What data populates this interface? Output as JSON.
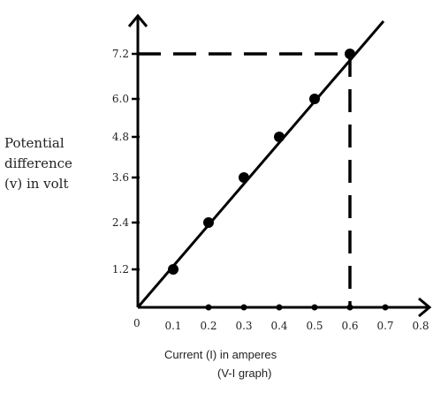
{
  "chart_data": {
    "type": "line",
    "ylabel_lines": [
      "Potential",
      "difference",
      "(v) in volt"
    ],
    "xlabel": "Current (I) in amperes",
    "caption": "(V-I graph)",
    "origin_label": "0",
    "x_ticks": [
      0.1,
      0.2,
      0.3,
      0.4,
      0.5,
      0.6,
      0.7,
      0.8
    ],
    "x_tick_labels": [
      "0.1",
      "0.2",
      "0.3",
      "0.4",
      "0.5",
      "0.6",
      "0.7",
      "0.8"
    ],
    "y_ticks": [
      1.2,
      2.4,
      3.6,
      4.8,
      6.0,
      7.2
    ],
    "y_tick_labels": [
      "1.2",
      "2.4",
      "3.6",
      "4.8",
      "6.0",
      "7.2"
    ],
    "xlim": [
      0,
      0.8
    ],
    "ylim": [
      0,
      7.2
    ],
    "series": [
      {
        "points": [
          {
            "x": 0.1,
            "y": 1.2
          },
          {
            "x": 0.2,
            "y": 2.4
          },
          {
            "x": 0.3,
            "y": 3.6
          },
          {
            "x": 0.4,
            "y": 4.8
          },
          {
            "x": 0.5,
            "y": 6.0
          },
          {
            "x": 0.6,
            "y": 7.2
          }
        ],
        "line_from": {
          "x": 0,
          "y": 0
        },
        "line_to": {
          "x": 0.69,
          "y": 8.2
        }
      }
    ],
    "dashed_marker": {
      "x": 0.6,
      "y": 7.2
    },
    "axis_dots_x": [
      0.2,
      0.3,
      0.4,
      0.5,
      0.6,
      0.7
    ],
    "grid": false,
    "colors": {
      "ink": "#000000"
    }
  }
}
